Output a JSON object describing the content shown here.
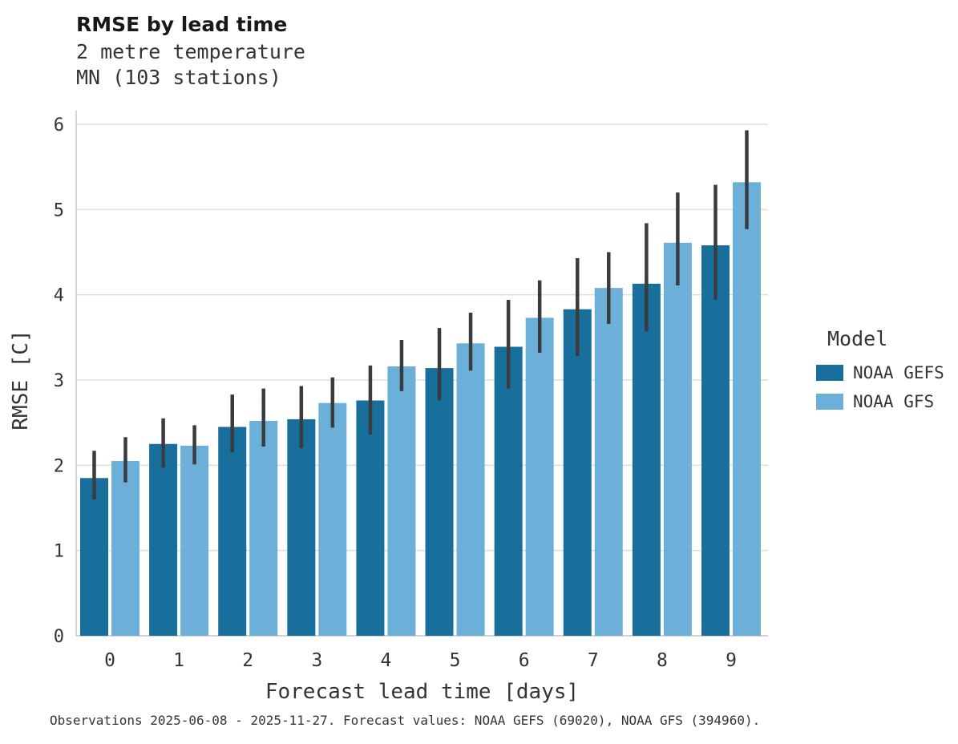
{
  "title": "RMSE by lead time",
  "subtitle_line1": "2 metre temperature",
  "subtitle_line2": "MN (103 stations)",
  "caption": "Observations 2025-06-08 - 2025-11-27. Forecast values: NOAA GEFS (69020), NOAA GFS (394960).",
  "legend": {
    "title": "Model",
    "entries": [
      {
        "label": "NOAA GEFS",
        "color": "#186f9b"
      },
      {
        "label": "NOAA GFS",
        "color": "#6cb0d9"
      }
    ]
  },
  "colors": {
    "grid": "#dedede",
    "spine": "#c9c9c9",
    "errorbar": "#3a3b3f",
    "text": "#33343a"
  },
  "chart_data": {
    "type": "bar",
    "title": "RMSE by lead time",
    "subtitle": [
      "2 metre temperature",
      "MN (103 stations)"
    ],
    "xlabel": "Forecast lead time [days]",
    "ylabel": "RMSE [C]",
    "categories": [
      0,
      1,
      2,
      3,
      4,
      5,
      6,
      7,
      8,
      9
    ],
    "ylim": [
      0,
      6
    ],
    "yticks": [
      0,
      1,
      2,
      3,
      4,
      5,
      6
    ],
    "grid": "horizontal",
    "legend_position": "right",
    "legend_title": "Model",
    "series": [
      {
        "name": "NOAA GEFS",
        "color": "#186f9b",
        "values": [
          1.85,
          2.25,
          2.45,
          2.54,
          2.76,
          3.14,
          3.39,
          3.83,
          4.13,
          4.58
        ],
        "err_low": [
          1.6,
          1.97,
          2.15,
          2.2,
          2.36,
          2.76,
          2.9,
          3.28,
          3.57,
          3.94
        ],
        "err_high": [
          2.17,
          2.55,
          2.83,
          2.93,
          3.17,
          3.61,
          3.94,
          4.43,
          4.84,
          5.29
        ]
      },
      {
        "name": "NOAA GFS",
        "color": "#6cb0d9",
        "values": [
          2.05,
          2.23,
          2.52,
          2.73,
          3.16,
          3.43,
          3.73,
          4.08,
          4.61,
          5.32
        ],
        "err_low": [
          1.8,
          2.01,
          2.22,
          2.44,
          2.87,
          3.11,
          3.32,
          3.66,
          4.11,
          4.77
        ],
        "err_high": [
          2.33,
          2.47,
          2.9,
          3.03,
          3.47,
          3.79,
          4.17,
          4.5,
          5.2,
          5.93
        ]
      }
    ]
  }
}
